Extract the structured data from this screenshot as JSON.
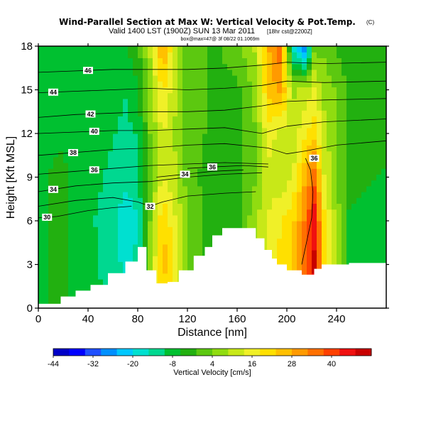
{
  "title": "Wind-Parallel Section at Max W: Vertical Velocity & Pot.Temp.",
  "copyright_mark": "(C)",
  "subtitle": "Valid 1400 LST (1900Z) SUN 13 Mar 2011",
  "subtitle_note": "[18hr cst@2200Z]",
  "info_line": "box@max=47@ 3f 08/22 01.1069m",
  "chart_data": {
    "type": "heatmap",
    "title": "Wind-Parallel Section at Max W: Vertical Velocity & Pot.Temp.",
    "xlabel": "Distance [nm]",
    "ylabel": "Height [Kft MSL]",
    "xlim": [
      0,
      280
    ],
    "ylim": [
      0,
      18
    ],
    "xticks": [
      0,
      40,
      80,
      120,
      160,
      200,
      240
    ],
    "yticks": [
      0,
      3,
      6,
      9,
      12,
      15,
      18
    ],
    "colorbar": {
      "label": "Vertical Velocity [cm/s]",
      "range": [
        -44,
        52
      ],
      "tick_values": [
        -44,
        -32,
        -20,
        -8,
        4,
        16,
        28,
        40
      ],
      "tick_labels": [
        "-44",
        "-32",
        "-20",
        "-8",
        "4",
        "16",
        "28",
        "40"
      ],
      "colors": [
        "#0000c8",
        "#0000ff",
        "#2050ff",
        "#0090ff",
        "#00c8ff",
        "#00e0d0",
        "#00d890",
        "#00c030",
        "#22b010",
        "#5cc810",
        "#90dc10",
        "#c8e818",
        "#f0f028",
        "#ffe000",
        "#ffc000",
        "#ff9a00",
        "#ff7000",
        "#ff4000",
        "#f01010",
        "#c80000"
      ]
    },
    "terrain": {
      "x": [
        0,
        18,
        18,
        30,
        30,
        42,
        42,
        56,
        56,
        70,
        70,
        80,
        80,
        87,
        87,
        95,
        95,
        104,
        104,
        113,
        113,
        125,
        125,
        134,
        134,
        140,
        140,
        148,
        148,
        175,
        175,
        182,
        182,
        188,
        188,
        192,
        192,
        200,
        200,
        212,
        212,
        222,
        222,
        228,
        228,
        250,
        250,
        280
      ],
      "y": [
        0.3,
        0.3,
        0.8,
        0.8,
        1.2,
        1.2,
        1.6,
        1.6,
        2.4,
        2.4,
        3.2,
        3.2,
        4.2,
        4.2,
        2.6,
        2.6,
        1.7,
        1.7,
        1.8,
        1.8,
        2.6,
        2.6,
        3.6,
        3.6,
        4.2,
        4.2,
        5.0,
        5.0,
        5.5,
        5.5,
        4.8,
        4.8,
        4.0,
        4.0,
        3.4,
        3.4,
        3.0,
        3.0,
        2.6,
        2.6,
        2.3,
        2.3,
        2.7,
        2.7,
        3.0,
        3.0,
        3.1,
        3.1
      ]
    },
    "theta_contours": [
      {
        "value": 30,
        "label": "30",
        "label_x": 7,
        "points": [
          [
            0,
            6.2
          ],
          [
            15,
            6.3
          ],
          [
            40,
            6.7
          ],
          [
            60,
            6.9
          ],
          [
            75,
            7.0
          ]
        ]
      },
      {
        "value": 32,
        "label": "32",
        "label_x": 90,
        "points": [
          [
            0,
            7.0
          ],
          [
            30,
            7.4
          ],
          [
            60,
            7.6
          ],
          [
            80,
            7.3
          ],
          [
            90,
            7.0
          ],
          [
            100,
            7.3
          ],
          [
            120,
            7.7
          ],
          [
            150,
            7.9
          ],
          [
            175,
            8.0
          ]
        ]
      },
      {
        "value": 34,
        "label": "34",
        "label_x": 12,
        "points": [
          [
            0,
            8.0
          ],
          [
            30,
            8.4
          ],
          [
            60,
            8.6
          ],
          [
            90,
            8.7
          ],
          [
            120,
            9.0
          ],
          [
            150,
            9.2
          ],
          [
            180,
            9.3
          ]
        ]
      },
      {
        "value": 34,
        "label": "34",
        "label_x": 118,
        "points": [
          [
            95,
            9.0
          ],
          [
            118,
            9.2
          ],
          [
            140,
            9.4
          ],
          [
            165,
            9.5
          ]
        ]
      },
      {
        "value": 36,
        "label": "36",
        "label_x": 45,
        "points": [
          [
            0,
            9.2
          ],
          [
            30,
            9.4
          ],
          [
            60,
            9.6
          ],
          [
            90,
            9.8
          ],
          [
            120,
            9.9
          ],
          [
            150,
            10.0
          ],
          [
            185,
            9.9
          ]
        ]
      },
      {
        "value": 36,
        "label": "36",
        "label_x": 140,
        "points": [
          [
            120,
            9.6
          ],
          [
            140,
            9.7
          ],
          [
            165,
            9.8
          ],
          [
            185,
            9.7
          ]
        ]
      },
      {
        "value": 38,
        "label": "38",
        "label_x": 28,
        "points": [
          [
            0,
            10.5
          ],
          [
            30,
            10.7
          ],
          [
            60,
            10.9
          ],
          [
            90,
            11.0
          ],
          [
            120,
            11.2
          ],
          [
            150,
            11.3
          ],
          [
            185,
            11.0
          ],
          [
            200,
            10.6
          ],
          [
            215,
            10.8
          ],
          [
            240,
            11.2
          ],
          [
            280,
            11.5
          ]
        ]
      },
      {
        "value": 40,
        "label": "40",
        "label_x": 45,
        "points": [
          [
            0,
            12.0
          ],
          [
            30,
            12.1
          ],
          [
            60,
            12.2
          ],
          [
            90,
            12.2
          ],
          [
            120,
            12.3
          ],
          [
            150,
            12.4
          ],
          [
            180,
            12.0
          ],
          [
            200,
            12.5
          ],
          [
            230,
            12.8
          ],
          [
            280,
            13.0
          ]
        ]
      },
      {
        "value": 42,
        "label": "42",
        "label_x": 42,
        "points": [
          [
            0,
            13.1
          ],
          [
            30,
            13.3
          ],
          [
            60,
            13.4
          ],
          [
            90,
            13.5
          ],
          [
            120,
            13.5
          ],
          [
            150,
            13.6
          ],
          [
            180,
            13.9
          ],
          [
            200,
            14.2
          ],
          [
            230,
            14.3
          ],
          [
            280,
            14.4
          ]
        ]
      },
      {
        "value": 44,
        "label": "44",
        "label_x": 12,
        "points": [
          [
            0,
            14.8
          ],
          [
            30,
            14.9
          ],
          [
            60,
            15.0
          ],
          [
            90,
            15.1
          ],
          [
            120,
            15.0
          ],
          [
            150,
            15.1
          ],
          [
            180,
            15.3
          ],
          [
            200,
            15.6
          ],
          [
            230,
            15.5
          ],
          [
            280,
            15.6
          ]
        ]
      },
      {
        "value": 46,
        "label": "46",
        "label_x": 40,
        "points": [
          [
            0,
            16.2
          ],
          [
            30,
            16.3
          ],
          [
            60,
            16.4
          ],
          [
            90,
            16.4
          ],
          [
            120,
            16.4
          ],
          [
            150,
            16.5
          ],
          [
            180,
            16.7
          ],
          [
            200,
            16.9
          ],
          [
            230,
            16.8
          ],
          [
            280,
            16.9
          ]
        ]
      },
      {
        "value": 36,
        "label": "36",
        "label_x": 222,
        "points": [
          [
            212,
            3.0
          ],
          [
            217,
            5.0
          ],
          [
            220,
            6.2
          ],
          [
            221,
            8.0
          ],
          [
            219,
            9.5
          ],
          [
            215,
            10.3
          ]
        ]
      }
    ],
    "w_field": {
      "x": [
        0,
        20,
        40,
        60,
        70,
        80,
        90,
        100,
        110,
        120,
        140,
        160,
        175,
        185,
        195,
        205,
        215,
        222,
        230,
        250,
        280
      ],
      "y": [
        0,
        3,
        6,
        9,
        12,
        15,
        18
      ],
      "w": [
        [
          -6,
          -5,
          -7,
          -12,
          -14,
          -12,
          8,
          22,
          14,
          4,
          -4,
          -2,
          4,
          14,
          18,
          22,
          34,
          44,
          20,
          -6,
          -8
        ],
        [
          -6,
          -5,
          -8,
          -14,
          -16,
          -14,
          6,
          26,
          16,
          4,
          -4,
          -2,
          6,
          16,
          20,
          24,
          36,
          48,
          22,
          -6,
          -8
        ],
        [
          -6,
          -5,
          -9,
          -14,
          -18,
          -16,
          4,
          24,
          14,
          4,
          -4,
          -3,
          8,
          14,
          18,
          22,
          34,
          46,
          20,
          -6,
          -8
        ],
        [
          -6,
          -5,
          -8,
          -12,
          -14,
          -12,
          2,
          14,
          10,
          2,
          -4,
          -4,
          4,
          12,
          10,
          14,
          28,
          36,
          14,
          -4,
          -6
        ],
        [
          -6,
          -6,
          -7,
          -10,
          -12,
          -10,
          4,
          14,
          8,
          2,
          -2,
          -2,
          4,
          16,
          12,
          10,
          18,
          22,
          10,
          -2,
          -4
        ],
        [
          -6,
          -6,
          -6,
          -8,
          -10,
          -6,
          6,
          20,
          10,
          2,
          -2,
          -2,
          6,
          24,
          30,
          8,
          10,
          14,
          8,
          -2,
          -4
        ],
        [
          -6,
          -6,
          -6,
          -6,
          -6,
          -2,
          10,
          30,
          12,
          2,
          -2,
          2,
          10,
          28,
          36,
          -20,
          -30,
          2,
          2,
          -4,
          -4
        ]
      ]
    }
  }
}
